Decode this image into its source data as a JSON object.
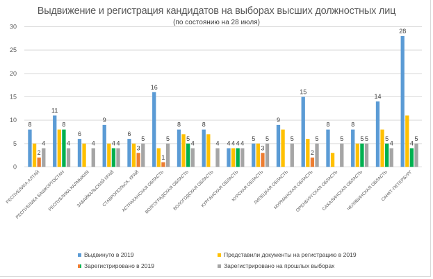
{
  "chart_data": {
    "type": "bar",
    "title": "Выдвижение и регистрация кандидатов на выборах высших должностных  лиц",
    "subtitle": "(по состоянию на 28  июля)",
    "xlabel": "",
    "ylabel": "",
    "ylim": [
      0,
      30
    ],
    "yticks": [
      0,
      5,
      10,
      15,
      20,
      25,
      30
    ],
    "grid": true,
    "legend_position": "bottom",
    "categories": [
      "РЕСПУБЛИКА АЛТАЙ",
      "РЕСПУБЛИКА БАШКОРТОСТАН",
      "РЕСПУБЛИКА КАЛМЫКИЯ",
      "ЗАБАЙКАЛЬСКИЙ КРАЙ",
      "СТАВРОПОЛЬСК. КРАЙ",
      "АСТРАХАНСКАЯ ОБЛАСТЬ",
      "ВОЛГОГРАДСКАЯ ОБЛАСТЬ",
      "ВОЛОГОДСКАЯ ОБЛАСТЬ",
      "КУРГАНСКАЯ ОБЛАСТЬ",
      "КУРСКАЯ ОБЛАСТЬ",
      "ЛИПЕЦКАЯ ОБЛАСТЬ",
      "МУРМАНСКАЯ ОБЛАСТЬ",
      "ОРЕНБУРГСКАЯ ОБЛАСТЬ",
      "САХАЛИНСКАЯ ОБЛАСТЬ",
      "ЧЕЛЯБИНСКАЯ ОБЛАСТЬ",
      "САНКТ-ПЕТЕРБУРГ"
    ],
    "series": [
      {
        "name": "Выдвинуто в 2019",
        "color": "#5B9BD5",
        "values": [
          8,
          11,
          6,
          9,
          6,
          16,
          8,
          8,
          4,
          5,
          9,
          15,
          8,
          8,
          14,
          28
        ],
        "labels_shown": [
          true,
          true,
          true,
          true,
          true,
          true,
          true,
          true,
          true,
          true,
          true,
          true,
          true,
          true,
          true,
          true
        ]
      },
      {
        "name": "Представили документы на регистрацию в 2019",
        "color": "#FFC000",
        "values": [
          5,
          8,
          5,
          5,
          5,
          4,
          7,
          7,
          4,
          5,
          8,
          6,
          3,
          5,
          8,
          11
        ],
        "labels_shown": [
          false,
          false,
          false,
          false,
          false,
          false,
          false,
          false,
          true,
          false,
          false,
          false,
          false,
          false,
          false,
          false
        ]
      },
      {
        "name": "Зарегистрировано в 2019",
        "color": "#00B050",
        "alt_color": "#ED7D31",
        "values": [
          2,
          8,
          null,
          4,
          3,
          1,
          5,
          null,
          4,
          3,
          null,
          2,
          null,
          5,
          5,
          4
        ],
        "point_colors": [
          "#ED7D31",
          "#00B050",
          null,
          "#00B050",
          "#ED7D31",
          "#ED7D31",
          "#00B050",
          null,
          "#00B050",
          "#ED7D31",
          null,
          "#ED7D31",
          null,
          "#00B050",
          "#00B050",
          "#00B050"
        ],
        "labels_shown": [
          true,
          true,
          false,
          true,
          true,
          true,
          true,
          false,
          true,
          true,
          false,
          true,
          false,
          true,
          true,
          true
        ]
      },
      {
        "name": "Зарегистрировано на прошлых выборах",
        "color": "#A5A5A5",
        "values": [
          4,
          4,
          4,
          4,
          5,
          5,
          4,
          4,
          4,
          5,
          5,
          5,
          5,
          5,
          4,
          5
        ],
        "labels_shown": [
          true,
          true,
          true,
          true,
          true,
          true,
          true,
          true,
          true,
          true,
          true,
          true,
          true,
          true,
          true,
          true
        ]
      }
    ]
  },
  "legend": {
    "items": [
      {
        "label": "Выдвинуто в 2019",
        "color": "#5B9BD5"
      },
      {
        "label": "Представили документы на регистрацию в 2019",
        "color": "#FFC000"
      },
      {
        "label": "Зарегистрировано в 2019",
        "color": "#00B050",
        "alt_color": "#ED7D31"
      },
      {
        "label": "Зарегистрировано на прошлых выборах",
        "color": "#A5A5A5"
      }
    ]
  }
}
